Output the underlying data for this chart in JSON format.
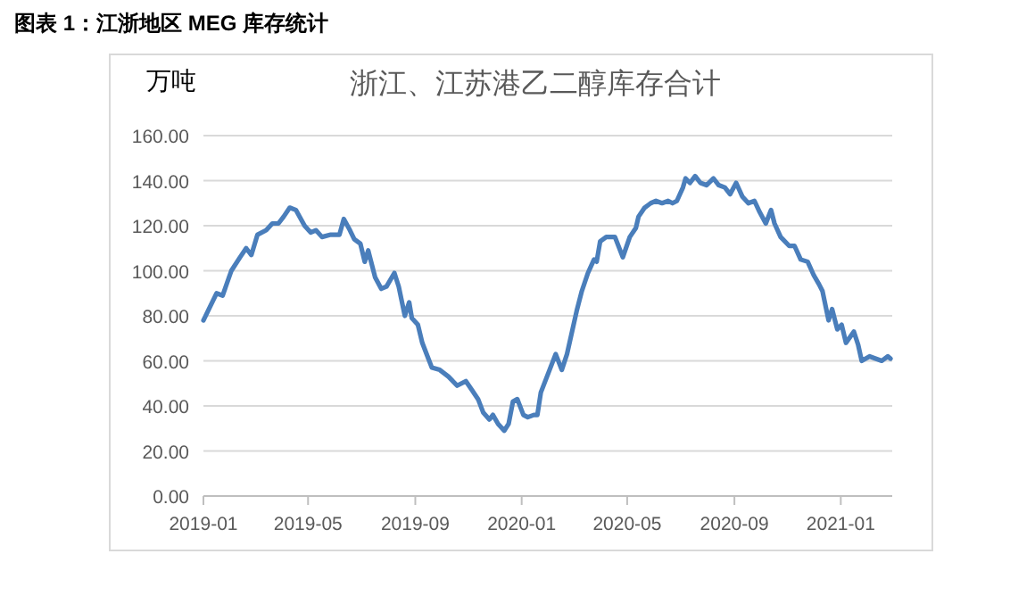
{
  "chart_data": {
    "type": "line",
    "title": "浙江、江苏港乙二醇库存合计",
    "ylabel": "万吨",
    "annotations": [
      "图表 1：江浙地区 MEG 库存统计"
    ],
    "x": [
      "2019-01-01",
      "2019-01-16",
      "2019-01-23",
      "2019-02-02",
      "2019-02-12",
      "2019-02-19",
      "2019-02-25",
      "2019-03-04",
      "2019-03-14",
      "2019-03-21",
      "2019-03-28",
      "2019-04-03",
      "2019-04-10",
      "2019-04-17",
      "2019-04-27",
      "2019-05-04",
      "2019-05-10",
      "2019-05-17",
      "2019-05-27",
      "2019-06-06",
      "2019-06-11",
      "2019-06-18",
      "2019-06-23",
      "2019-06-30",
      "2019-07-05",
      "2019-07-09",
      "2019-07-17",
      "2019-07-24",
      "2019-07-30",
      "2019-08-08",
      "2019-08-13",
      "2019-08-20",
      "2019-08-25",
      "2019-08-28",
      "2019-09-04",
      "2019-09-09",
      "2019-09-15",
      "2019-09-20",
      "2019-09-29",
      "2019-10-09",
      "2019-10-19",
      "2019-10-29",
      "2019-11-05",
      "2019-11-12",
      "2019-11-18",
      "2019-11-25",
      "2019-11-29",
      "2019-12-05",
      "2019-12-12",
      "2019-12-17",
      "2019-12-22",
      "2019-12-27",
      "2020-01-03",
      "2020-01-08",
      "2020-01-15",
      "2020-01-19",
      "2020-01-23",
      "2020-02-02",
      "2020-02-09",
      "2020-02-16",
      "2020-02-22",
      "2020-03-04",
      "2020-03-10",
      "2020-03-17",
      "2020-03-24",
      "2020-03-27",
      "2020-03-31",
      "2020-04-07",
      "2020-04-17",
      "2020-04-26",
      "2020-05-04",
      "2020-05-11",
      "2020-05-14",
      "2020-05-21",
      "2020-05-28",
      "2020-06-03",
      "2020-06-10",
      "2020-06-17",
      "2020-06-22",
      "2020-06-27",
      "2020-07-04",
      "2020-07-07",
      "2020-07-12",
      "2020-07-18",
      "2020-07-24",
      "2020-07-31",
      "2020-08-08",
      "2020-08-14",
      "2020-08-21",
      "2020-08-27",
      "2020-09-03",
      "2020-09-10",
      "2020-09-17",
      "2020-09-24",
      "2020-09-30",
      "2020-10-07",
      "2020-10-13",
      "2020-10-17",
      "2020-10-24",
      "2020-11-03",
      "2020-11-09",
      "2020-11-16",
      "2020-11-24",
      "2020-12-01",
      "2020-12-07",
      "2020-12-11",
      "2020-12-18",
      "2020-12-22",
      "2020-12-28",
      "2021-01-02",
      "2021-01-07",
      "2021-01-16",
      "2021-01-21",
      "2021-01-25",
      "2021-02-03",
      "2021-02-10",
      "2021-02-17",
      "2021-02-24",
      "2021-02-27"
    ],
    "series": [
      {
        "color": "#4a7ebb",
        "values": [
          78,
          90,
          89,
          100,
          106,
          110,
          107,
          116,
          118,
          121,
          121,
          124,
          128,
          127,
          120,
          117,
          118,
          115,
          116,
          116,
          123,
          118,
          114,
          112,
          104,
          109,
          97,
          92,
          93,
          99,
          93,
          80,
          86,
          79,
          76,
          68,
          62,
          57,
          56,
          53,
          49,
          51,
          47,
          43,
          37,
          34,
          36,
          32,
          29,
          32,
          42,
          43,
          36,
          35,
          36,
          36,
          46,
          56,
          63,
          56,
          63,
          82,
          91,
          99,
          105,
          104,
          113,
          115,
          115,
          106,
          115,
          119,
          124,
          128,
          130,
          131,
          130,
          131,
          130,
          131,
          137,
          141,
          139,
          142,
          139,
          138,
          141,
          138,
          137,
          134,
          139,
          133,
          130,
          131,
          126,
          121,
          127,
          121,
          115,
          111,
          111,
          105,
          104,
          98,
          94,
          91,
          78,
          83,
          74,
          76,
          68,
          73,
          67,
          60,
          62,
          61,
          60,
          62,
          61
        ]
      }
    ],
    "xlim": [
      "2019-01-01",
      "2021-03-01"
    ],
    "xticks": [
      {
        "value": "2019-01-01",
        "label": "2019-01"
      },
      {
        "value": "2019-05-01",
        "label": "2019-05"
      },
      {
        "value": "2019-09-01",
        "label": "2019-09"
      },
      {
        "value": "2020-01-01",
        "label": "2020-01"
      },
      {
        "value": "2020-05-01",
        "label": "2020-05"
      },
      {
        "value": "2020-09-01",
        "label": "2020-09"
      },
      {
        "value": "2021-01-01",
        "label": "2021-01"
      }
    ],
    "ylim": [
      0,
      160
    ],
    "yticks": [
      {
        "value": 0,
        "label": "0.00"
      },
      {
        "value": 20,
        "label": "20.00"
      },
      {
        "value": 40,
        "label": "40.00"
      },
      {
        "value": 60,
        "label": "60.00"
      },
      {
        "value": 80,
        "label": "80.00"
      },
      {
        "value": 100,
        "label": "100.00"
      },
      {
        "value": 120,
        "label": "120.00"
      },
      {
        "value": 140,
        "label": "140.00"
      },
      {
        "value": 160,
        "label": "160.00"
      }
    ],
    "grid": "y",
    "marker": "none",
    "line_style": "solid"
  }
}
